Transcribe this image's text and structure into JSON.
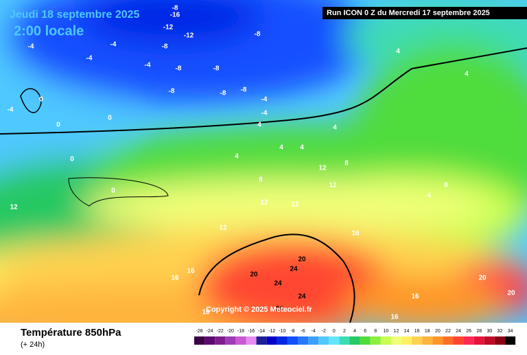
{
  "header": {
    "date": "Jeudi 18 septembre 2025",
    "time": "2:00 locale",
    "run": "Run ICON 0 Z du Mercredi 17 septembre 2025"
  },
  "copyright": "Copyright © 2025 Meteociel.fr",
  "footer": {
    "title": "Température 850hPa",
    "subtitle": "(+ 24h)"
  },
  "scale": {
    "labels": [
      -26,
      -24,
      -22,
      -20,
      -18,
      -16,
      -14,
      -12,
      -10,
      -8,
      -6,
      -4,
      -2,
      0,
      2,
      4,
      6,
      8,
      10,
      12,
      14,
      16,
      18,
      20,
      22,
      24,
      26,
      28,
      30,
      32,
      34
    ],
    "colors": [
      "#3c0046",
      "#5a0a6e",
      "#7d1e8c",
      "#a03cb4",
      "#c85ad2",
      "#e68cf0",
      "#1e1e96",
      "#0000c8",
      "#0028e6",
      "#1450ff",
      "#2878ff",
      "#3ca0ff",
      "#50c8ff",
      "#64e6ff",
      "#3cdcb4",
      "#28c864",
      "#50dc3c",
      "#8cf03c",
      "#c8ff50",
      "#f0ff78",
      "#fff064",
      "#ffd250",
      "#ffb43c",
      "#ff9628",
      "#ff6e28",
      "#ff4632",
      "#ff2850",
      "#e6143c",
      "#be0a28",
      "#8c0014",
      "#000000"
    ]
  },
  "contour_labels": [
    -8,
    -12,
    -16,
    -12,
    -8,
    -8,
    -8,
    -8,
    -8,
    -8,
    -8,
    -4,
    -4,
    -4,
    -4,
    -4,
    -4,
    0,
    0,
    0,
    0,
    -4,
    4,
    4,
    4,
    4,
    4,
    4,
    8,
    8,
    12,
    12,
    12,
    12,
    12,
    12,
    16,
    16,
    16,
    16,
    20,
    20,
    24,
    24,
    24,
    24,
    20,
    20,
    16,
    16,
    8,
    4,
    4,
    0
  ]
}
